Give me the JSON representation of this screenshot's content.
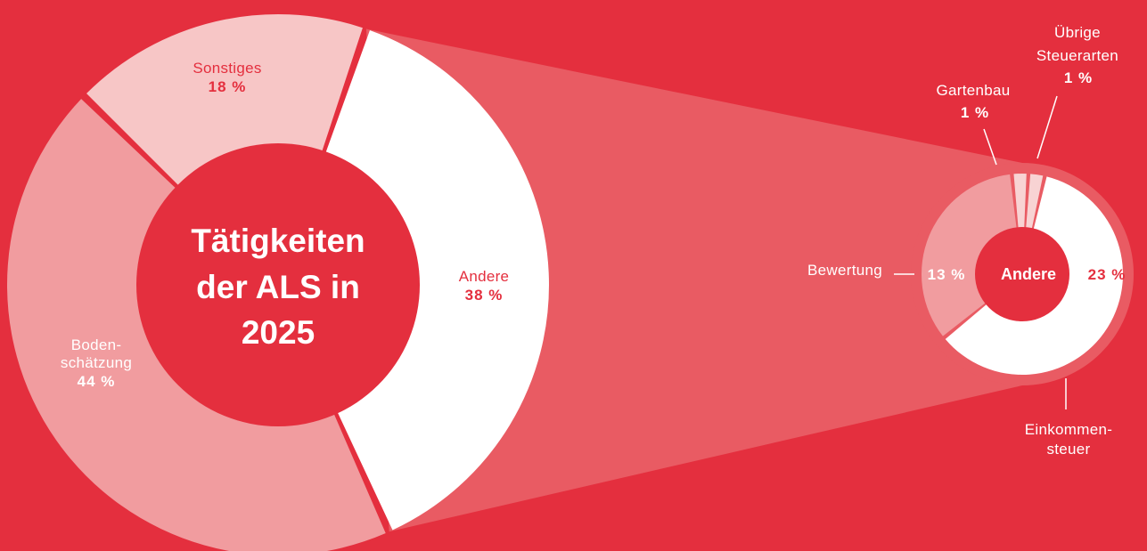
{
  "colors": {
    "background": "#e42f3e",
    "funnel": "#e95b63",
    "white": "#ffffff",
    "light_pink": "#f7c6c6",
    "mid_pink": "#f19c9f",
    "pale_pink": "#f8d3d3",
    "red": "#e42f3e"
  },
  "main_chart": {
    "center_title": [
      "Tätigkeiten",
      "der ALS in",
      "2025"
    ]
  },
  "detail_chart": {
    "center_label": "Andere"
  },
  "chart_data": [
    {
      "type": "pie",
      "title": "Tätigkeiten der ALS in 2025",
      "slices": [
        {
          "label": "Andere",
          "value": 38,
          "display": "38 %",
          "color": "#ffffff"
        },
        {
          "label": "Boden-\nschätzung",
          "value": 44,
          "display": "44 %",
          "color": "#f19c9f"
        },
        {
          "label": "Sonstiges",
          "value": 18,
          "display": "18 %",
          "color": "#f7c6c6"
        }
      ]
    },
    {
      "type": "pie",
      "title": "Andere",
      "slices": [
        {
          "label": "Einkommen-\nsteuer",
          "value": 23,
          "display": "23 %",
          "color": "#ffffff"
        },
        {
          "label": "Bewertung",
          "value": 13,
          "display": "13 %",
          "color": "#f19c9f"
        },
        {
          "label": "Gartenbau",
          "value": 1,
          "display": "1 %",
          "color": "#f8d3d3"
        },
        {
          "label": "Übrige\nSteuerarten",
          "value": 1,
          "display": "1 %",
          "color": "#f8d3d3"
        }
      ]
    }
  ]
}
